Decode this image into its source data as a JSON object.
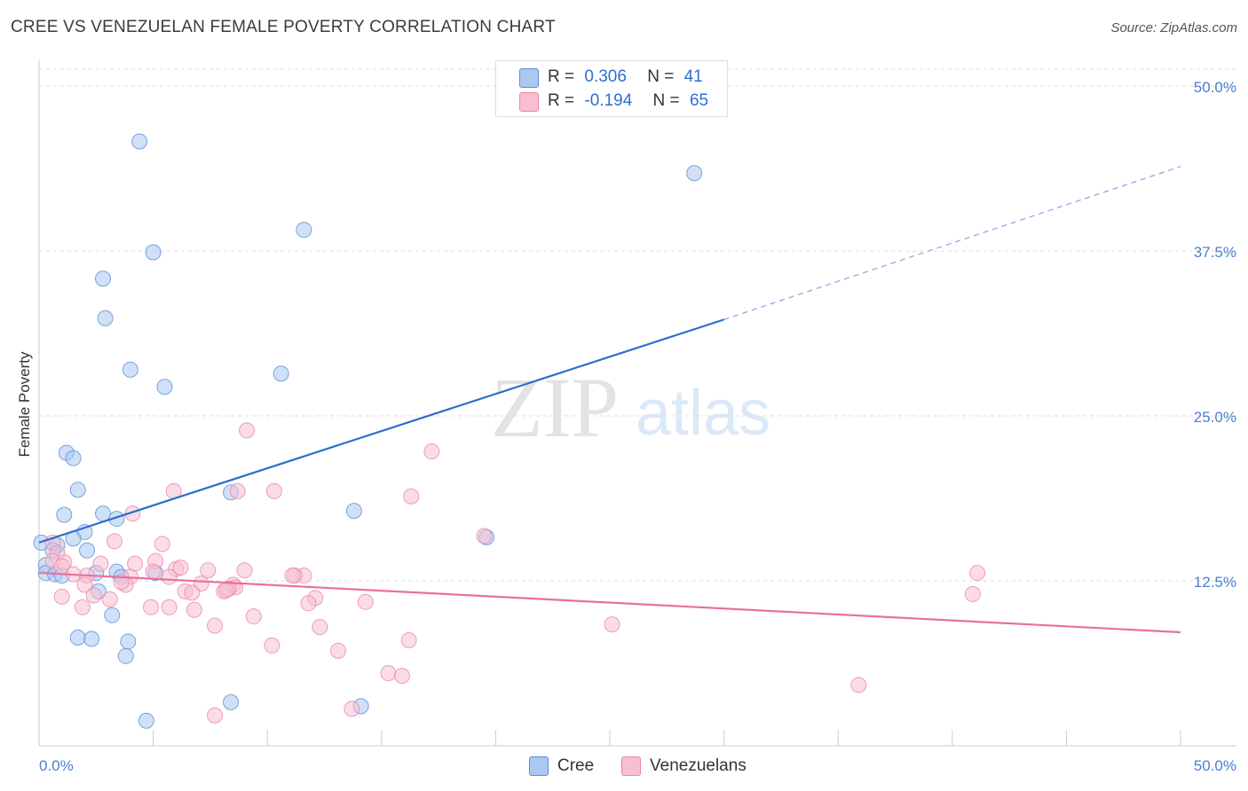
{
  "title": "CREE VS VENEZUELAN FEMALE POVERTY CORRELATION CHART",
  "source": "Source: ZipAtlas.com",
  "watermark": {
    "zip": "ZIP",
    "atlas": "atlas"
  },
  "legend": {
    "cree": {
      "r_label": "R =",
      "r_value": "0.306",
      "n_label": "N =",
      "n_value": "41"
    },
    "venezuelans": {
      "r_label": "R =",
      "r_value": "-0.194",
      "n_label": "N =",
      "n_value": "65"
    }
  },
  "colors": {
    "cree_fill": "#aac8f0",
    "cree_stroke": "#5b8fd8",
    "cree_line": "#2a6fd0",
    "ven_fill": "#f7bfd1",
    "ven_stroke": "#e888a8",
    "ven_line": "#e8709a",
    "grid": "#dddddd",
    "axis_text": "#4a7fcf"
  },
  "chart_data": {
    "type": "scatter",
    "title": "CREE VS VENEZUELAN FEMALE POVERTY CORRELATION CHART",
    "xlabel": "",
    "ylabel": "Female Poverty",
    "xlim": [
      0,
      50
    ],
    "ylim": [
      0,
      50
    ],
    "x_tick_labels": [
      "0.0%",
      "50.0%"
    ],
    "y_tick_labels": [
      "12.5%",
      "25.0%",
      "37.5%",
      "50.0%"
    ],
    "y_ticks": [
      12.5,
      25.0,
      37.5,
      50.0
    ],
    "grid": true,
    "legend_placement": "bottom-center",
    "series": [
      {
        "name": "Cree",
        "points": [
          [
            4.4,
            45.8
          ],
          [
            28.7,
            43.4
          ],
          [
            11.6,
            39.1
          ],
          [
            5.0,
            37.4
          ],
          [
            2.8,
            35.4
          ],
          [
            2.9,
            32.4
          ],
          [
            4.0,
            28.5
          ],
          [
            10.6,
            28.2
          ],
          [
            5.5,
            27.2
          ],
          [
            1.2,
            22.2
          ],
          [
            1.5,
            21.8
          ],
          [
            1.7,
            19.4
          ],
          [
            8.4,
            19.2
          ],
          [
            1.1,
            17.5
          ],
          [
            2.8,
            17.6
          ],
          [
            3.4,
            17.2
          ],
          [
            13.8,
            17.8
          ],
          [
            2.0,
            16.2
          ],
          [
            1.5,
            15.7
          ],
          [
            19.6,
            15.8
          ],
          [
            0.1,
            15.4
          ],
          [
            0.8,
            15.2
          ],
          [
            0.6,
            14.8
          ],
          [
            2.1,
            14.8
          ],
          [
            0.3,
            13.7
          ],
          [
            0.3,
            13.1
          ],
          [
            0.7,
            13.0
          ],
          [
            1.0,
            12.9
          ],
          [
            2.5,
            13.1
          ],
          [
            3.4,
            13.2
          ],
          [
            3.6,
            12.8
          ],
          [
            5.1,
            13.1
          ],
          [
            2.6,
            11.7
          ],
          [
            3.2,
            9.9
          ],
          [
            1.7,
            8.2
          ],
          [
            2.3,
            8.1
          ],
          [
            3.9,
            7.9
          ],
          [
            3.8,
            6.8
          ],
          [
            8.4,
            3.3
          ],
          [
            14.1,
            3.0
          ],
          [
            4.7,
            1.9
          ]
        ]
      },
      {
        "name": "Venezuelans",
        "points": [
          [
            9.1,
            23.9
          ],
          [
            17.2,
            22.3
          ],
          [
            5.9,
            19.3
          ],
          [
            8.7,
            19.3
          ],
          [
            10.3,
            19.3
          ],
          [
            16.3,
            18.9
          ],
          [
            4.1,
            17.6
          ],
          [
            19.5,
            15.9
          ],
          [
            3.3,
            15.5
          ],
          [
            5.4,
            15.3
          ],
          [
            0.6,
            15.4
          ],
          [
            0.8,
            14.6
          ],
          [
            0.6,
            14.0
          ],
          [
            1.1,
            13.9
          ],
          [
            1.0,
            13.6
          ],
          [
            4.2,
            13.8
          ],
          [
            5.1,
            14.0
          ],
          [
            6.0,
            13.4
          ],
          [
            2.7,
            13.8
          ],
          [
            7.4,
            13.3
          ],
          [
            1.5,
            13.0
          ],
          [
            2.1,
            12.9
          ],
          [
            4.0,
            12.8
          ],
          [
            5.7,
            12.8
          ],
          [
            11.6,
            12.9
          ],
          [
            11.2,
            12.9
          ],
          [
            7.1,
            12.3
          ],
          [
            8.5,
            12.2
          ],
          [
            8.6,
            12.0
          ],
          [
            2.0,
            12.2
          ],
          [
            3.8,
            12.2
          ],
          [
            6.4,
            11.7
          ],
          [
            6.7,
            11.6
          ],
          [
            8.1,
            11.7
          ],
          [
            8.3,
            11.9
          ],
          [
            12.1,
            11.2
          ],
          [
            11.8,
            10.8
          ],
          [
            14.3,
            10.9
          ],
          [
            1.0,
            11.3
          ],
          [
            2.4,
            11.4
          ],
          [
            3.1,
            11.1
          ],
          [
            4.9,
            10.5
          ],
          [
            5.7,
            10.5
          ],
          [
            6.8,
            10.3
          ],
          [
            1.9,
            10.5
          ],
          [
            9.4,
            9.8
          ],
          [
            7.7,
            9.1
          ],
          [
            12.3,
            9.0
          ],
          [
            25.1,
            9.2
          ],
          [
            16.2,
            8.0
          ],
          [
            10.2,
            7.6
          ],
          [
            13.1,
            7.2
          ],
          [
            15.3,
            5.5
          ],
          [
            15.9,
            5.3
          ],
          [
            35.9,
            4.6
          ],
          [
            7.7,
            2.3
          ],
          [
            13.7,
            2.8
          ],
          [
            41.1,
            13.1
          ],
          [
            40.9,
            11.5
          ],
          [
            9.0,
            13.3
          ],
          [
            5.0,
            13.2
          ],
          [
            3.6,
            12.4
          ],
          [
            6.2,
            13.5
          ],
          [
            11.1,
            12.9
          ],
          [
            8.2,
            11.8
          ]
        ]
      }
    ],
    "trendlines": [
      {
        "series": "Cree",
        "x": [
          0,
          30
        ],
        "y": [
          15.4,
          32.3
        ],
        "dashed_extension_to_x": 50,
        "dashed_extension_y": 43.9
      },
      {
        "series": "Venezuelans",
        "x": [
          0,
          50
        ],
        "y": [
          13.1,
          8.6
        ]
      }
    ]
  },
  "bottom_legend": [
    {
      "label": "Cree"
    },
    {
      "label": "Venezuelans"
    }
  ]
}
